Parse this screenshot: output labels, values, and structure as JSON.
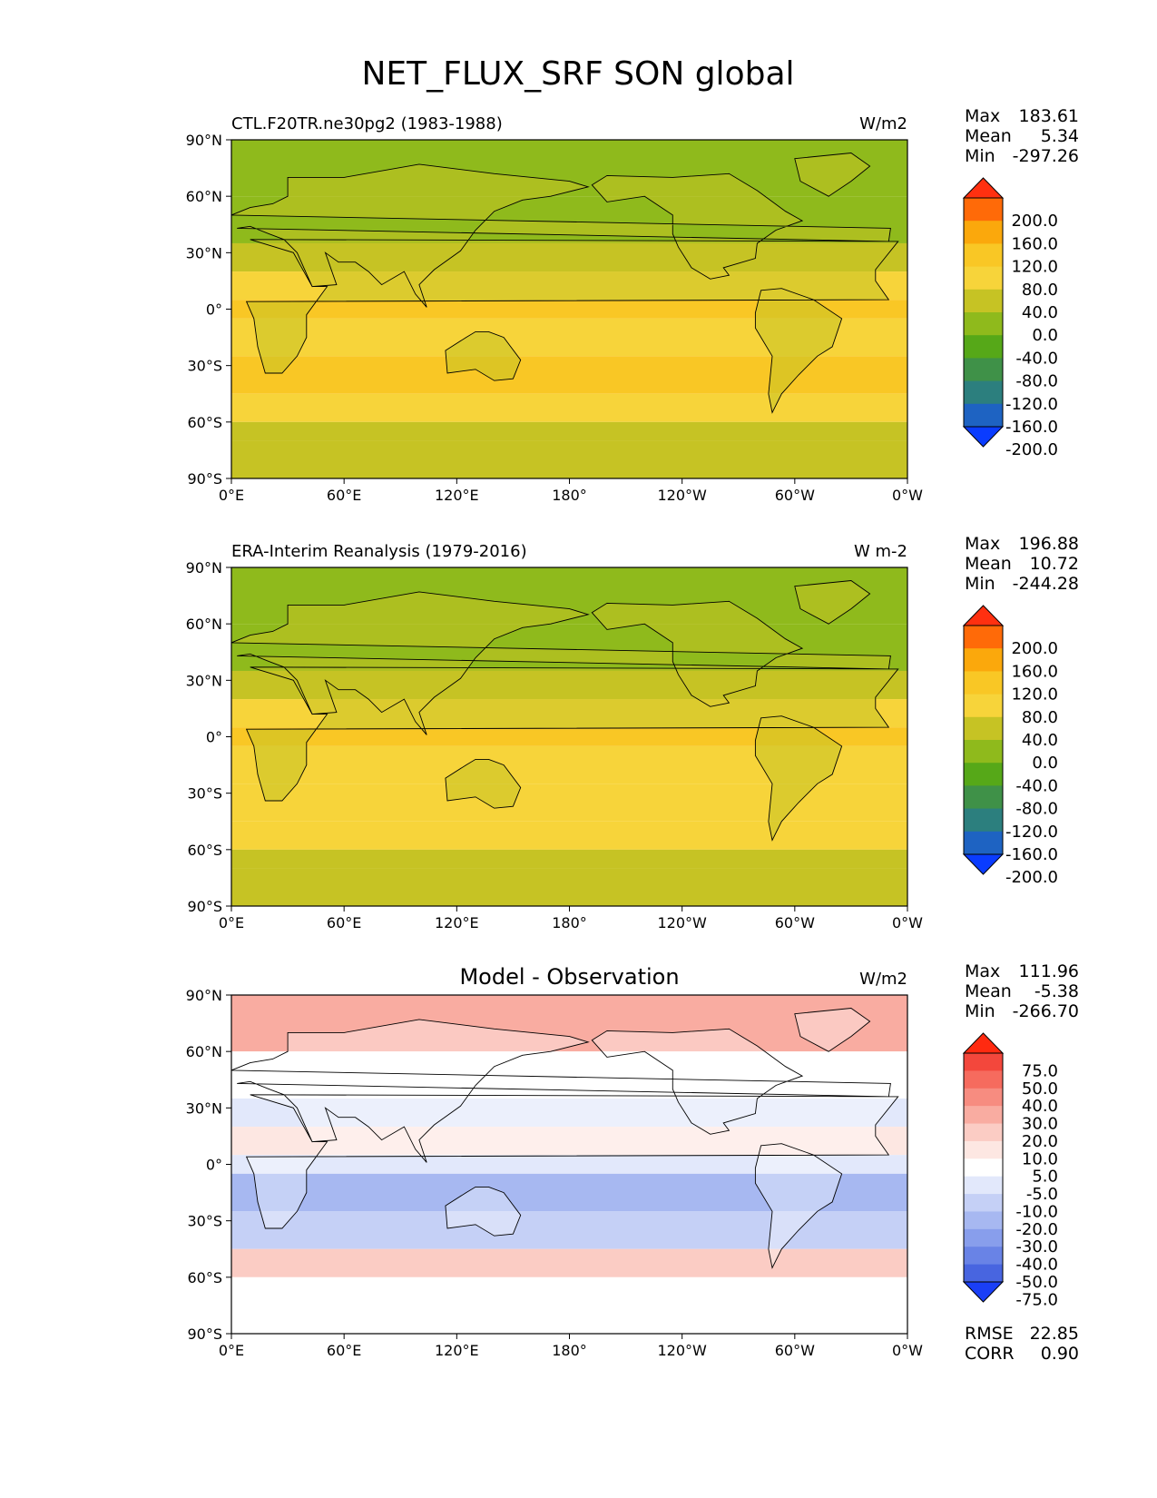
{
  "figure_title": "NET_FLUX_SRF SON global",
  "chart_data": [
    {
      "type": "heatmap",
      "title_left": "CTL.F20TR.ne30pg2 (1983-1988)",
      "title_center": "",
      "units": "W/m2",
      "stats": [
        [
          "Max",
          "183.61"
        ],
        [
          "Mean",
          "5.34"
        ],
        [
          "Min",
          "-297.26"
        ]
      ],
      "colorbar_levels": [
        "200.0",
        "160.0",
        "120.0",
        "80.0",
        "40.0",
        "0.0",
        "-40.0",
        "-80.0",
        "-120.0",
        "-160.0",
        "-200.0"
      ],
      "colorbar_colors": [
        "#ff3010",
        "#ff6a08",
        "#fba80c",
        "#f9c725",
        "#f7d43a",
        "#c6c324",
        "#8fba1c",
        "#56a818",
        "#3f9148",
        "#2c7f7e",
        "#1e63c2",
        "#0a3cff"
      ],
      "xticks": [
        "0°E",
        "60°E",
        "120°E",
        "180°",
        "120°W",
        "60°W",
        "0°W"
      ],
      "yticks": [
        "90°N",
        "60°N",
        "30°N",
        "0°",
        "30°S",
        "60°S",
        "90°S"
      ],
      "xlim": [
        0,
        360
      ],
      "ylim": [
        -90,
        90
      ]
    },
    {
      "type": "heatmap",
      "title_left": "ERA-Interim Reanalysis (1979-2016)",
      "title_center": "",
      "units": "W m-2",
      "stats": [
        [
          "Max",
          "196.88"
        ],
        [
          "Mean",
          "10.72"
        ],
        [
          "Min",
          "-244.28"
        ]
      ],
      "colorbar_levels": [
        "200.0",
        "160.0",
        "120.0",
        "80.0",
        "40.0",
        "0.0",
        "-40.0",
        "-80.0",
        "-120.0",
        "-160.0",
        "-200.0"
      ],
      "colorbar_colors": [
        "#ff3010",
        "#ff6a08",
        "#fba80c",
        "#f9c725",
        "#f7d43a",
        "#c6c324",
        "#8fba1c",
        "#56a818",
        "#3f9148",
        "#2c7f7e",
        "#1e63c2",
        "#0a3cff"
      ],
      "xticks": [
        "0°E",
        "60°E",
        "120°E",
        "180°",
        "120°W",
        "60°W",
        "0°W"
      ],
      "yticks": [
        "90°N",
        "60°N",
        "30°N",
        "0°",
        "30°S",
        "60°S",
        "90°S"
      ],
      "xlim": [
        0,
        360
      ],
      "ylim": [
        -90,
        90
      ]
    },
    {
      "type": "heatmap",
      "title_left": "",
      "title_center": "Model - Observation",
      "units": "W/m2",
      "stats": [
        [
          "Max",
          "111.96"
        ],
        [
          "Mean",
          "-5.38"
        ],
        [
          "Min",
          "-266.70"
        ]
      ],
      "extra_stats": [
        [
          "RMSE",
          "22.85"
        ],
        [
          "CORR",
          "0.90"
        ]
      ],
      "colorbar_levels": [
        "75.0",
        "50.0",
        "40.0",
        "30.0",
        "20.0",
        "10.0",
        "5.0",
        "-5.0",
        "-10.0",
        "-20.0",
        "-30.0",
        "-40.0",
        "-50.0",
        "-75.0"
      ],
      "colorbar_colors": [
        "#ff2a10",
        "#f3473c",
        "#f66b5e",
        "#f78c80",
        "#f9aca1",
        "#fbccc4",
        "#fde7e2",
        "#ffffff",
        "#e2e8fb",
        "#c5d0f6",
        "#a7b8f1",
        "#889eec",
        "#6983e6",
        "#4865e0",
        "#1a3ff6"
      ],
      "xticks": [
        "0°E",
        "60°E",
        "120°E",
        "180°",
        "120°W",
        "60°W",
        "0°W"
      ],
      "yticks": [
        "90°N",
        "60°N",
        "30°N",
        "0°",
        "30°S",
        "60°S",
        "90°S"
      ],
      "xlim": [
        0,
        360
      ],
      "ylim": [
        -90,
        90
      ]
    }
  ]
}
